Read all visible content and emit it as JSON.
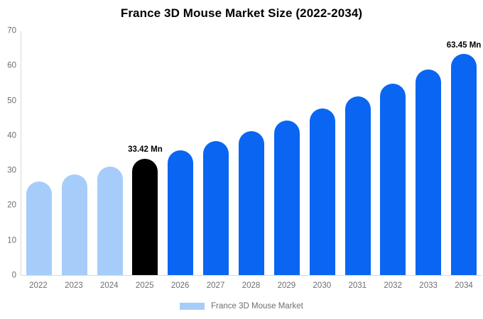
{
  "title": "France 3D Mouse Market Size (2022-2034)",
  "legend": {
    "label": "France 3D Mouse Market",
    "swatch_color": "#A6CDFA"
  },
  "palette": {
    "historical": "#A6CDFA",
    "base_year": "#000000",
    "forecast": "#0A66F2",
    "axis_line": "#D8D8D8",
    "tick_text": "#6E6E6E",
    "data_label_text": "#000000"
  },
  "chart_data": {
    "type": "bar",
    "title": "France 3D Mouse Market Size (2022-2034)",
    "unit": "Mn",
    "categories": [
      "2022",
      "2023",
      "2024",
      "2025",
      "2026",
      "2027",
      "2028",
      "2029",
      "2030",
      "2031",
      "2032",
      "2033",
      "2034"
    ],
    "values": [
      26.8,
      29.0,
      31.1,
      33.42,
      35.9,
      38.5,
      41.4,
      44.4,
      47.8,
      51.3,
      55.0,
      59.1,
      63.45
    ],
    "segments": [
      "historical",
      "historical",
      "historical",
      "base_year",
      "forecast",
      "forecast",
      "forecast",
      "forecast",
      "forecast",
      "forecast",
      "forecast",
      "forecast",
      "forecast"
    ],
    "point_labels": [
      "",
      "",
      "",
      "33.42 Mn",
      "",
      "",
      "",
      "",
      "",
      "",
      "",
      "",
      "63.45 Mn"
    ],
    "xlabel": "",
    "ylabel": "",
    "ylim": [
      0,
      70
    ],
    "yticks": [
      0,
      10,
      20,
      30,
      40,
      50,
      60,
      70
    ],
    "grid": false,
    "legend_position": "bottom",
    "legend_entries": [
      "France 3D Mouse Market"
    ]
  }
}
